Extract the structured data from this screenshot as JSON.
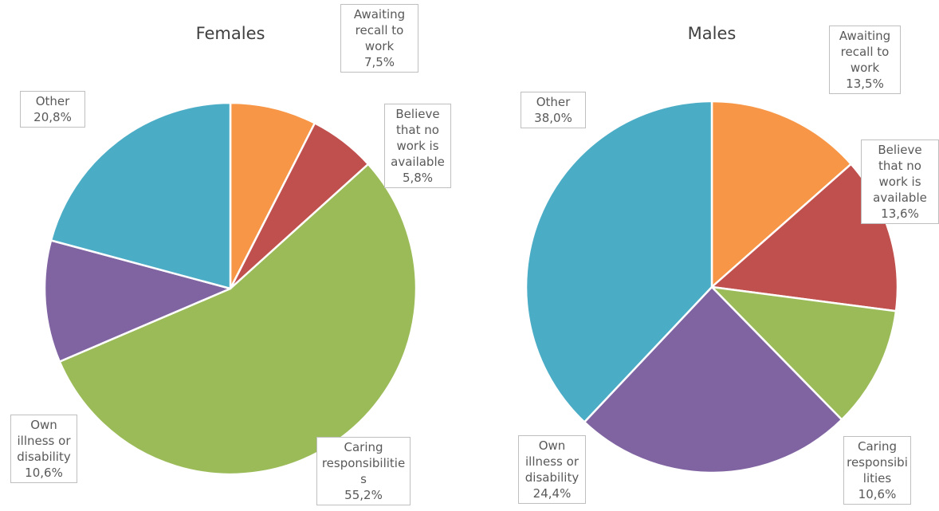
{
  "chart_data": [
    {
      "type": "pie",
      "title": "Females",
      "categories": [
        "Awaiting recall to work",
        "Believe that no work is available",
        "Caring responsibilities",
        "Own illness or disability",
        "Other"
      ],
      "values": [
        7.5,
        5.8,
        55.2,
        10.6,
        20.8
      ],
      "value_labels": [
        "7,5%",
        "5,8%",
        "55,2%",
        "10,6%",
        "20,8%"
      ],
      "colors": [
        "#f79646",
        "#c0504d",
        "#9bbb59",
        "#8064a2",
        "#4bacc6"
      ]
    },
    {
      "type": "pie",
      "title": "Males",
      "categories": [
        "Awaiting recall to work",
        "Believe that no work is available",
        "Caring responsibilities",
        "Own illness or disability",
        "Other"
      ],
      "values": [
        13.5,
        13.6,
        10.6,
        24.4,
        38.0
      ],
      "value_labels": [
        "13,5%",
        "13,6%",
        "10,6%",
        "24,4%",
        "38,0%"
      ],
      "colors": [
        "#f79646",
        "#c0504d",
        "#9bbb59",
        "#8064a2",
        "#4bacc6"
      ]
    }
  ]
}
